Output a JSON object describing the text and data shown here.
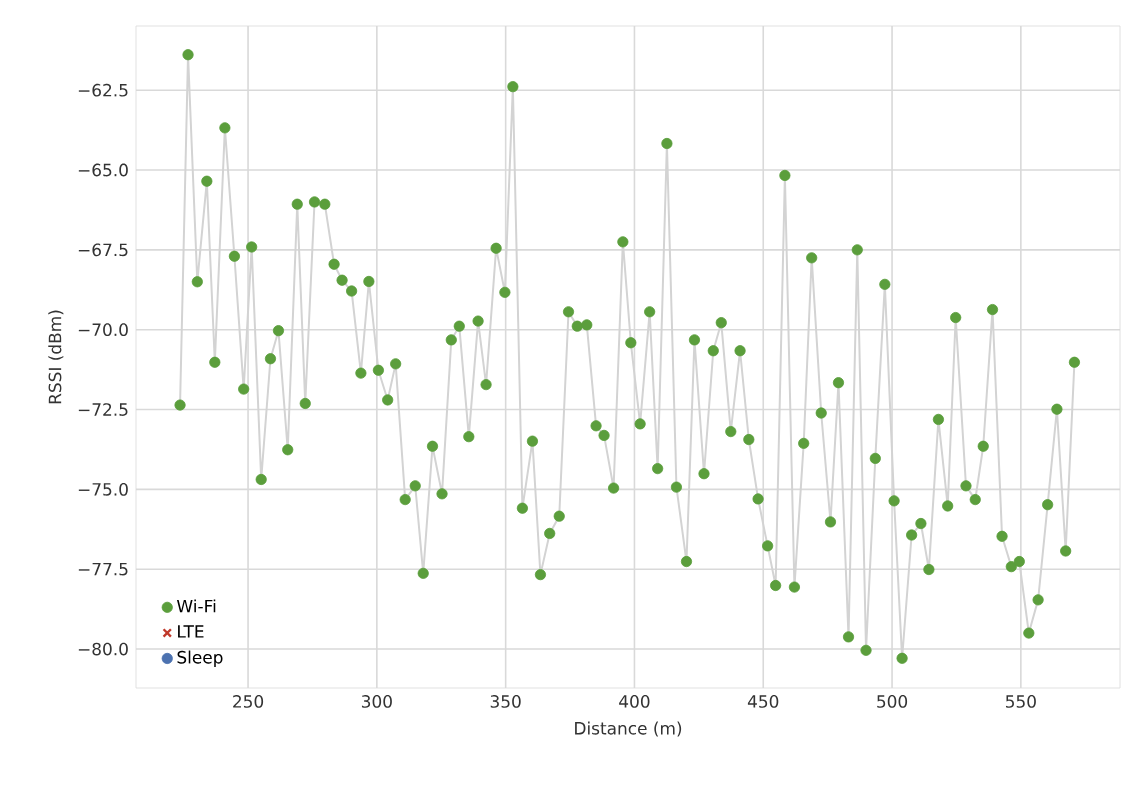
{
  "chart_data": {
    "type": "scatter",
    "xlabel": "Distance (m)",
    "ylabel": "RSSI (dBm)",
    "x": [
      223.6,
      226.7,
      230.3,
      234.0,
      237.1,
      241.0,
      244.7,
      248.3,
      251.4,
      255.1,
      258.7,
      261.8,
      265.4,
      269.1,
      272.2,
      275.8,
      279.8,
      283.4,
      286.5,
      290.2,
      293.8,
      296.9,
      300.6,
      304.2,
      307.3,
      311.0,
      314.9,
      318.0,
      321.6,
      325.3,
      328.9,
      332.0,
      335.7,
      339.3,
      342.4,
      346.3,
      349.7,
      352.8,
      356.5,
      360.4,
      363.5,
      367.1,
      370.8,
      374.4,
      377.8,
      381.5,
      385.1,
      388.2,
      391.9,
      395.5,
      398.6,
      402.2,
      405.9,
      409.0,
      412.6,
      416.3,
      420.2,
      423.3,
      427.0,
      430.6,
      433.7,
      437.4,
      441.0,
      444.4,
      448.0,
      451.7,
      454.8,
      458.4,
      462.1,
      465.7,
      468.8,
      472.5,
      476.1,
      479.2,
      483.1,
      486.5,
      489.9,
      493.5,
      497.2,
      500.8,
      503.9,
      507.6,
      511.2,
      514.3,
      518.0,
      521.6,
      524.7,
      528.7,
      532.3,
      535.4,
      539.0,
      542.7,
      546.3,
      549.4,
      553.1,
      556.7,
      560.4,
      564.0,
      567.4,
      570.8
    ],
    "series": [
      {
        "type": "line",
        "color": "#d3d3d3",
        "marker": "none",
        "values": [
          -72.36,
          -61.39,
          -68.5,
          -65.35,
          -71.02,
          -63.68,
          -67.7,
          -71.86,
          -67.41,
          -74.69,
          -70.91,
          -70.03,
          -73.76,
          -66.07,
          -72.31,
          -66.0,
          -66.07,
          -67.95,
          -68.45,
          -68.79,
          -71.36,
          -68.49,
          -71.27,
          -72.2,
          -71.07,
          -75.32,
          -74.89,
          -77.63,
          -73.65,
          -75.14,
          -70.32,
          -69.89,
          -73.35,
          -69.73,
          -71.72,
          -67.45,
          -68.83,
          -62.39,
          -75.59,
          -73.49,
          -77.67,
          -76.38,
          -75.84,
          -69.44,
          -69.89,
          -69.85,
          -73.01,
          -73.31,
          -74.96,
          -67.25,
          -70.41,
          -72.95,
          -69.44,
          -74.35,
          -64.17,
          -74.93,
          -77.26,
          -70.32,
          -74.51,
          -70.66,
          -69.78,
          -73.19,
          -70.66,
          -73.44,
          -75.3,
          -76.77,
          -78.01,
          -65.17,
          -78.06,
          -73.56,
          -67.75,
          -72.61,
          -76.02,
          -71.66,
          -79.62,
          -67.5,
          -80.04,
          -74.03,
          -68.58,
          -75.36,
          -80.29,
          -76.43,
          -76.07,
          -77.51,
          -72.81,
          -75.52,
          -69.62,
          -74.89,
          -75.32,
          -73.65,
          -69.37,
          -76.47,
          -77.42,
          -77.26,
          -79.5,
          -78.46,
          -75.48,
          -72.49,
          -76.93,
          -71.02
        ]
      },
      {
        "name": "Wi-Fi",
        "color": "#5b9e3c",
        "marker": "circle",
        "values": [
          -72.36,
          -61.39,
          -68.5,
          -65.35,
          -71.02,
          -63.68,
          -67.7,
          -71.86,
          -67.41,
          -74.69,
          -70.91,
          -70.03,
          -73.76,
          -66.07,
          -72.31,
          -66.0,
          -66.07,
          -67.95,
          -68.45,
          -68.79,
          -71.36,
          -68.49,
          -71.27,
          -72.2,
          -71.07,
          -75.32,
          -74.89,
          -77.63,
          -73.65,
          -75.14,
          -70.32,
          -69.89,
          -73.35,
          -69.73,
          -71.72,
          -67.45,
          -68.83,
          -62.39,
          -75.59,
          -73.49,
          -77.67,
          -76.38,
          -75.84,
          -69.44,
          -69.89,
          -69.85,
          -73.01,
          -73.31,
          -74.96,
          -67.25,
          -70.41,
          -72.95,
          -69.44,
          -74.35,
          -64.17,
          -74.93,
          -77.26,
          -70.32,
          -74.51,
          -70.66,
          -69.78,
          -73.19,
          -70.66,
          -73.44,
          -75.3,
          -76.77,
          -78.01,
          -65.17,
          -78.06,
          -73.56,
          -67.75,
          -72.61,
          -76.02,
          -71.66,
          -79.62,
          -67.5,
          -80.04,
          -74.03,
          -68.58,
          -75.36,
          -80.29,
          -76.43,
          -76.07,
          -77.51,
          -72.81,
          -75.52,
          -69.62,
          -74.89,
          -75.32,
          -73.65,
          -69.37,
          -76.47,
          -77.42,
          -77.26,
          -79.5,
          -78.46,
          -75.48,
          -72.49,
          -76.93,
          -71.02
        ]
      },
      {
        "name": "LTE",
        "color": "#c0392b",
        "marker": "cross",
        "values": [
          null,
          null,
          null,
          null,
          null,
          null,
          null,
          null,
          null,
          null,
          null,
          null,
          null,
          null,
          null,
          null,
          null,
          null,
          null,
          null,
          null,
          null,
          null,
          null,
          null,
          null,
          null,
          null,
          null,
          null,
          null,
          null,
          null,
          null,
          null,
          null,
          null,
          null,
          null,
          null,
          null,
          null,
          null,
          null,
          null,
          null,
          null,
          null,
          null,
          null,
          null,
          null,
          null,
          null,
          null,
          null,
          null,
          null,
          null,
          null,
          null,
          null,
          null,
          null,
          null,
          null,
          null,
          null,
          null,
          null,
          null,
          null,
          null,
          null,
          null,
          null,
          null,
          null,
          null,
          null,
          null,
          null,
          null,
          null,
          null,
          null,
          null,
          null,
          null,
          null,
          null,
          null,
          null,
          null,
          null,
          null,
          null,
          null,
          null,
          null
        ]
      },
      {
        "name": "Sleep",
        "color": "#4c72b0",
        "marker": "circle",
        "values": [
          null,
          null,
          null,
          null,
          null,
          null,
          null,
          null,
          null,
          null,
          null,
          null,
          null,
          null,
          null,
          null,
          null,
          null,
          null,
          null,
          null,
          null,
          null,
          null,
          null,
          null,
          null,
          null,
          null,
          null,
          null,
          null,
          null,
          null,
          null,
          null,
          null,
          null,
          null,
          null,
          null,
          null,
          null,
          null,
          null,
          null,
          null,
          null,
          null,
          null,
          null,
          null,
          null,
          null,
          null,
          null,
          null,
          null,
          null,
          null,
          null,
          null,
          null,
          null,
          null,
          null,
          null,
          null,
          null,
          null,
          null,
          null,
          null,
          null,
          null,
          null,
          null,
          null,
          null,
          null,
          null,
          null,
          null,
          null,
          null,
          null,
          null,
          null,
          null,
          null,
          null,
          null,
          null,
          null,
          null,
          null,
          null,
          null,
          null,
          null
        ]
      }
    ],
    "xlim": [
      206.5,
      588.5
    ],
    "ylim": [
      -81.22,
      -60.49
    ],
    "xticks": [
      250,
      300,
      350,
      400,
      450,
      500,
      550
    ],
    "yticks": [
      {
        "value": -80,
        "label": "−80.0"
      },
      {
        "value": -77.5,
        "label": "−77.5"
      },
      {
        "value": -75,
        "label": "−75.0"
      },
      {
        "value": -72.5,
        "label": "−72.5"
      },
      {
        "value": -70,
        "label": "−70.0"
      },
      {
        "value": -67.5,
        "label": "−67.5"
      },
      {
        "value": -65,
        "label": "−65.0"
      },
      {
        "value": -62.5,
        "label": "−62.5"
      }
    ],
    "grid": true,
    "legend": "bottom left"
  }
}
